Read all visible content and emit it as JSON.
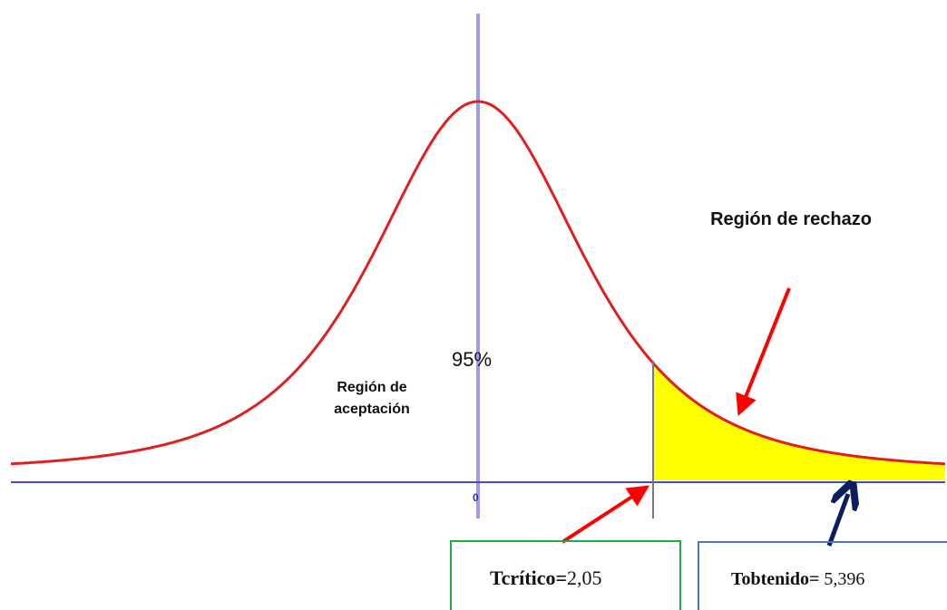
{
  "labels": {
    "rejection": "Región de rechazo",
    "confidence": "95%",
    "acceptance": [
      "Región de",
      "aceptación"
    ],
    "origin": "0"
  },
  "critical": {
    "name": "Tcrítico=",
    "value": "2,05"
  },
  "obtained": {
    "name": "Tobtenido=",
    "value": "5,396"
  }
}
